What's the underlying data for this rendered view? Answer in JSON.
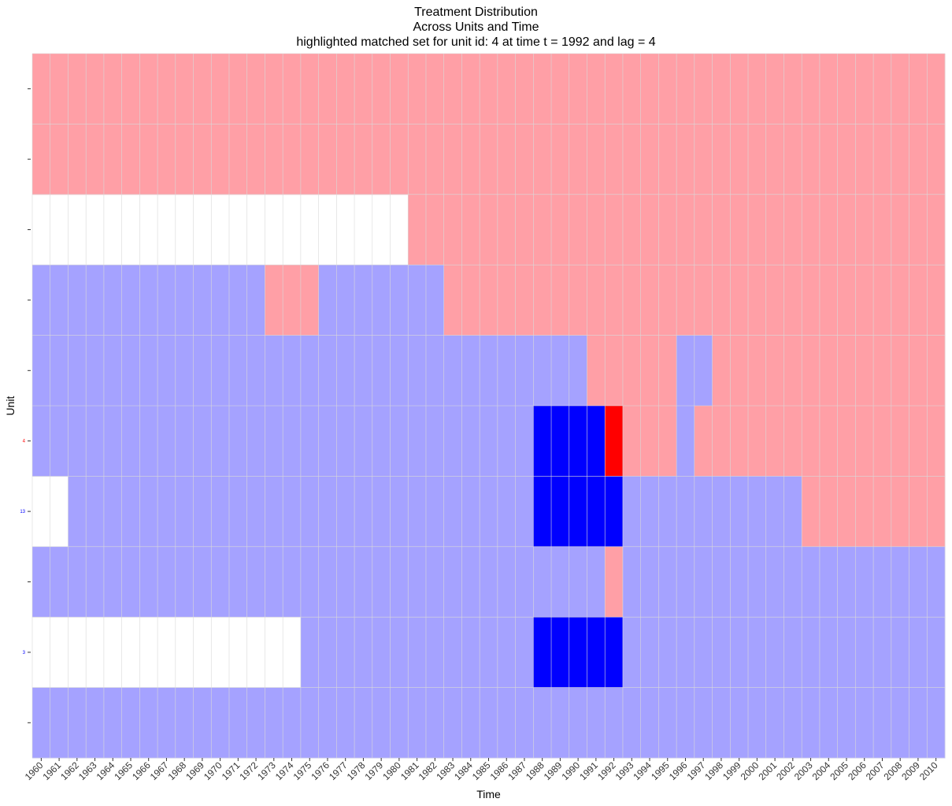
{
  "chart_data": {
    "type": "heatmap",
    "title": "Treatment Distribution",
    "subtitle": "Across Units and Time",
    "subtitle2": "highlighted matched set for unit id: 4 at time t = 1992 and lag = 4",
    "xlabel": "Time",
    "ylabel": "Unit",
    "x": [
      1960,
      1961,
      1962,
      1963,
      1964,
      1965,
      1966,
      1967,
      1968,
      1969,
      1970,
      1971,
      1972,
      1973,
      1974,
      1975,
      1976,
      1977,
      1978,
      1979,
      1980,
      1981,
      1982,
      1983,
      1984,
      1985,
      1986,
      1987,
      1988,
      1989,
      1990,
      1991,
      1992,
      1993,
      1994,
      1995,
      1996,
      1997,
      1998,
      1999,
      2000,
      2001,
      2002,
      2003,
      2004,
      2005,
      2006,
      2007,
      2008,
      2009,
      2010
    ],
    "rows": [
      {
        "label": "",
        "segments": [
          {
            "from": 1960,
            "to": 2010,
            "state": "treated"
          }
        ]
      },
      {
        "label": "",
        "segments": [
          {
            "from": 1960,
            "to": 2010,
            "state": "treated"
          }
        ]
      },
      {
        "label": "",
        "segments": [
          {
            "from": 1981,
            "to": 2010,
            "state": "treated"
          }
        ]
      },
      {
        "label": "",
        "segments": [
          {
            "from": 1960,
            "to": 1972,
            "state": "control"
          },
          {
            "from": 1973,
            "to": 1975,
            "state": "treated"
          },
          {
            "from": 1976,
            "to": 1982,
            "state": "control"
          },
          {
            "from": 1983,
            "to": 2010,
            "state": "treated"
          }
        ]
      },
      {
        "label": "",
        "segments": [
          {
            "from": 1960,
            "to": 1990,
            "state": "control"
          },
          {
            "from": 1991,
            "to": 1995,
            "state": "treated"
          },
          {
            "from": 1996,
            "to": 1997,
            "state": "control"
          },
          {
            "from": 1998,
            "to": 2010,
            "state": "treated"
          }
        ]
      },
      {
        "label": "4",
        "label_color": "#ff0000",
        "segments": [
          {
            "from": 1960,
            "to": 1987,
            "state": "control"
          },
          {
            "from": 1988,
            "to": 1991,
            "state": "matched"
          },
          {
            "from": 1992,
            "to": 1992,
            "state": "focal"
          },
          {
            "from": 1993,
            "to": 1995,
            "state": "treated"
          },
          {
            "from": 1996,
            "to": 1996,
            "state": "control"
          },
          {
            "from": 1997,
            "to": 2010,
            "state": "treated"
          }
        ]
      },
      {
        "label": "13",
        "label_color": "#0000ff",
        "segments": [
          {
            "from": 1962,
            "to": 1987,
            "state": "control"
          },
          {
            "from": 1988,
            "to": 1992,
            "state": "matched"
          },
          {
            "from": 1993,
            "to": 2002,
            "state": "control"
          },
          {
            "from": 2003,
            "to": 2010,
            "state": "treated"
          }
        ]
      },
      {
        "label": "",
        "segments": [
          {
            "from": 1960,
            "to": 1991,
            "state": "control"
          },
          {
            "from": 1992,
            "to": 1992,
            "state": "treated"
          },
          {
            "from": 1993,
            "to": 2010,
            "state": "control"
          }
        ]
      },
      {
        "label": "3",
        "label_color": "#0000ff",
        "segments": [
          {
            "from": 1975,
            "to": 1987,
            "state": "control"
          },
          {
            "from": 1988,
            "to": 1992,
            "state": "matched"
          },
          {
            "from": 1993,
            "to": 2010,
            "state": "control"
          }
        ]
      },
      {
        "label": "",
        "segments": [
          {
            "from": 1960,
            "to": 2010,
            "state": "control"
          }
        ]
      }
    ],
    "colors": {
      "treated": "#ff9fa6",
      "control": "#a5a2ff",
      "matched": "#0000ff",
      "focal": "#ff0000",
      "grid": "#d9d9d9"
    },
    "grid": true
  }
}
